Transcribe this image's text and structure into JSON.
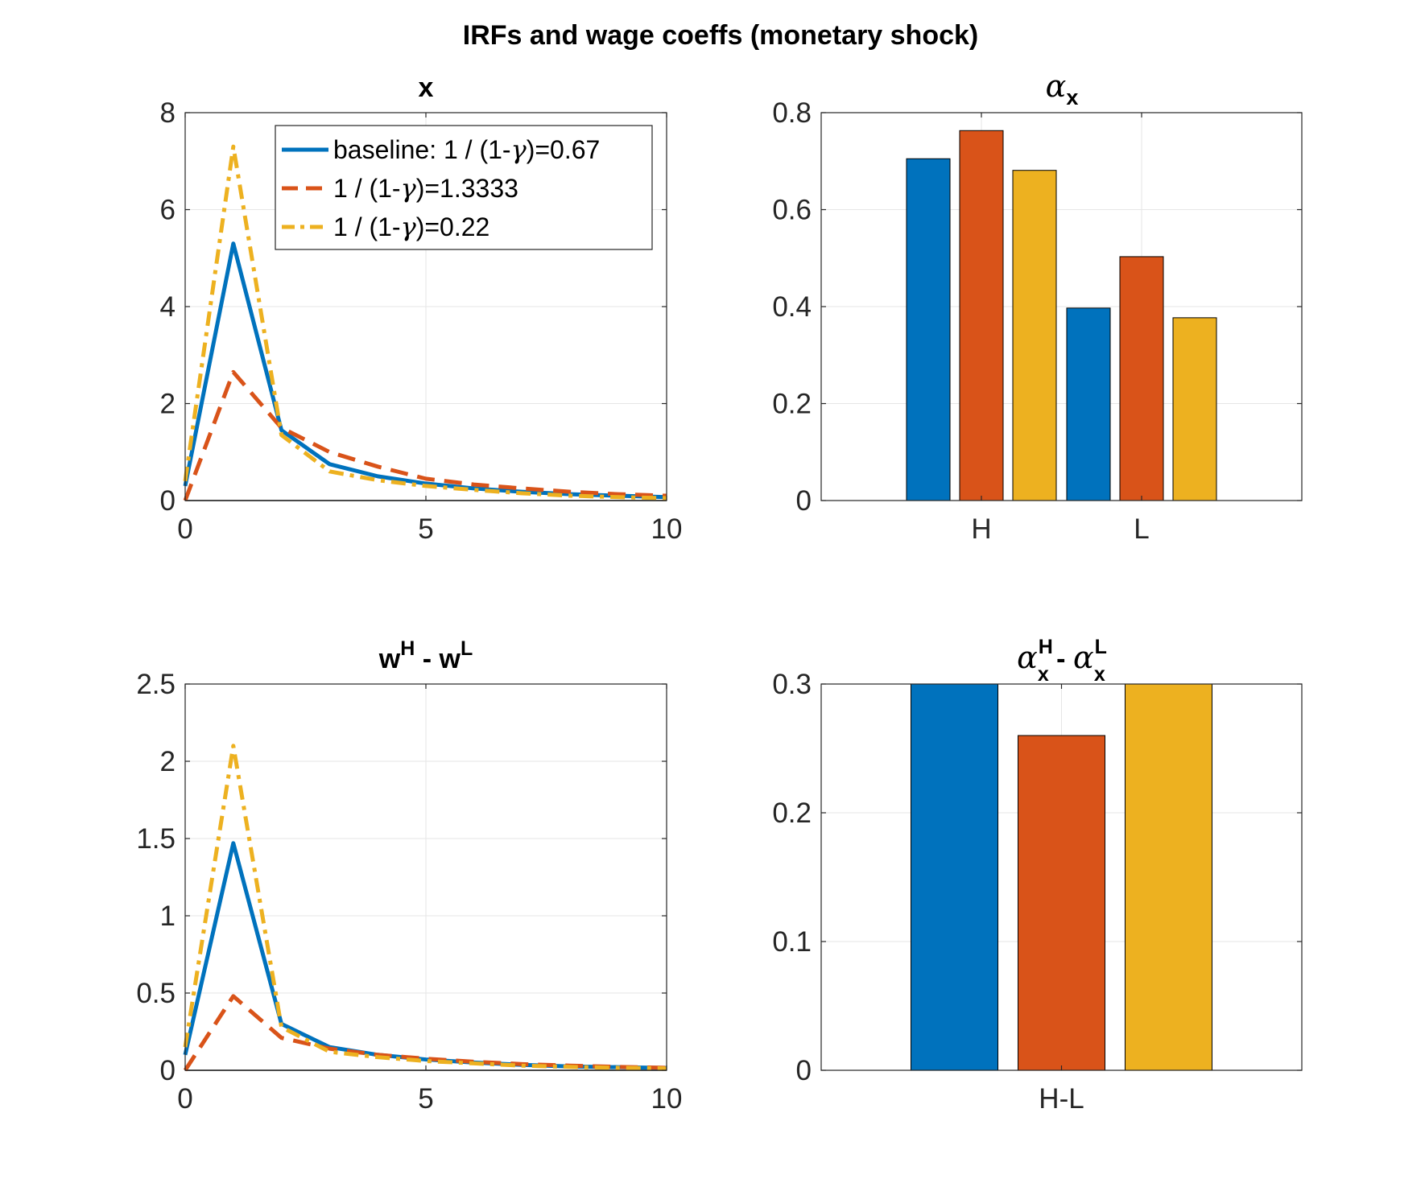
{
  "figure": {
    "title": "IRFs and wage coeffs (monetary shock)"
  },
  "colors": {
    "blue": "#0072BD",
    "orange": "#D95319",
    "yellow": "#EDB120",
    "axis": "#262626",
    "grid": "#E6E6E6"
  },
  "legend": {
    "entries": [
      {
        "pre": "baseline: 1 / (1-",
        "greek": "γ",
        "post": ")=0.67"
      },
      {
        "pre": "1 / (1-",
        "greek": "γ",
        "post": ")=1.3333"
      },
      {
        "pre": "1 / (1-",
        "greek": "γ",
        "post": ")=0.22"
      }
    ]
  },
  "chart_data": [
    {
      "id": "x",
      "type": "line",
      "title": "x",
      "xlim": [
        0,
        10
      ],
      "ylim": [
        0,
        8
      ],
      "xticks": [
        0,
        5,
        10
      ],
      "yticks": [
        0,
        2,
        4,
        6,
        8
      ],
      "ytick_labels": [
        "0",
        "2",
        "4",
        "6",
        "8"
      ],
      "grid": true,
      "legend": "top-right",
      "x": [
        0,
        1,
        2,
        3,
        4,
        5,
        6,
        7,
        8,
        9,
        10
      ],
      "series": [
        {
          "name": "baseline: 1 / (1-γ)=0.67",
          "style": "solid",
          "color": "blue",
          "values": [
            0.3,
            5.3,
            1.45,
            0.75,
            0.5,
            0.35,
            0.25,
            0.18,
            0.13,
            0.1,
            0.07
          ]
        },
        {
          "name": "1 / (1-γ)=1.3333",
          "style": "dashed",
          "color": "orange",
          "values": [
            0,
            2.65,
            1.5,
            1.0,
            0.7,
            0.45,
            0.33,
            0.25,
            0.18,
            0.13,
            0.1
          ]
        },
        {
          "name": "1 / (1-γ)=0.22",
          "style": "dashdot",
          "color": "yellow",
          "values": [
            0.4,
            7.3,
            1.35,
            0.6,
            0.42,
            0.3,
            0.22,
            0.15,
            0.1,
            0.07,
            0.05
          ]
        }
      ]
    },
    {
      "id": "alpha",
      "type": "bar",
      "title": "α_x",
      "categories": [
        "H",
        "L"
      ],
      "ylim": [
        0,
        0.8
      ],
      "yticks": [
        0,
        0.2,
        0.4,
        0.6,
        0.8
      ],
      "ytick_labels": [
        "0",
        "0.2",
        "0.4",
        "0.6",
        "0.8"
      ],
      "grid": true,
      "series": [
        {
          "color": "blue",
          "values": [
            0.705,
            0.397
          ]
        },
        {
          "color": "orange",
          "values": [
            0.763,
            0.503
          ]
        },
        {
          "color": "yellow",
          "values": [
            0.681,
            0.377
          ]
        }
      ]
    },
    {
      "id": "wdiff",
      "type": "line",
      "title": "w^H - w^L",
      "xlim": [
        0,
        10
      ],
      "ylim": [
        0,
        2.5
      ],
      "xticks": [
        0,
        5,
        10
      ],
      "yticks": [
        0,
        0.5,
        1,
        1.5,
        2,
        2.5
      ],
      "ytick_labels": [
        "0",
        "0.5",
        "1",
        "1.5",
        "2",
        "2.5"
      ],
      "grid": true,
      "x": [
        0,
        1,
        2,
        3,
        4,
        5,
        6,
        7,
        8,
        9,
        10
      ],
      "series": [
        {
          "style": "solid",
          "color": "blue",
          "values": [
            0.1,
            1.47,
            0.3,
            0.15,
            0.1,
            0.07,
            0.05,
            0.035,
            0.025,
            0.02,
            0.015
          ]
        },
        {
          "style": "dashed",
          "color": "orange",
          "values": [
            0,
            0.48,
            0.21,
            0.14,
            0.1,
            0.075,
            0.055,
            0.04,
            0.03,
            0.022,
            0.016
          ]
        },
        {
          "style": "dashdot",
          "color": "yellow",
          "values": [
            0.15,
            2.1,
            0.28,
            0.12,
            0.085,
            0.06,
            0.045,
            0.03,
            0.022,
            0.016,
            0.012
          ]
        }
      ]
    },
    {
      "id": "alphadiff",
      "type": "bar",
      "title": "α_x^H - α_x^L",
      "categories": [
        "H-L"
      ],
      "ylim": [
        0,
        0.3
      ],
      "yticks": [
        0,
        0.1,
        0.2,
        0.3
      ],
      "ytick_labels": [
        "0",
        "0.1",
        "0.2",
        "0.3"
      ],
      "grid": true,
      "series": [
        {
          "color": "blue",
          "values": [
            0.308
          ]
        },
        {
          "color": "orange",
          "values": [
            0.26
          ]
        },
        {
          "color": "yellow",
          "values": [
            0.304
          ]
        }
      ]
    }
  ]
}
